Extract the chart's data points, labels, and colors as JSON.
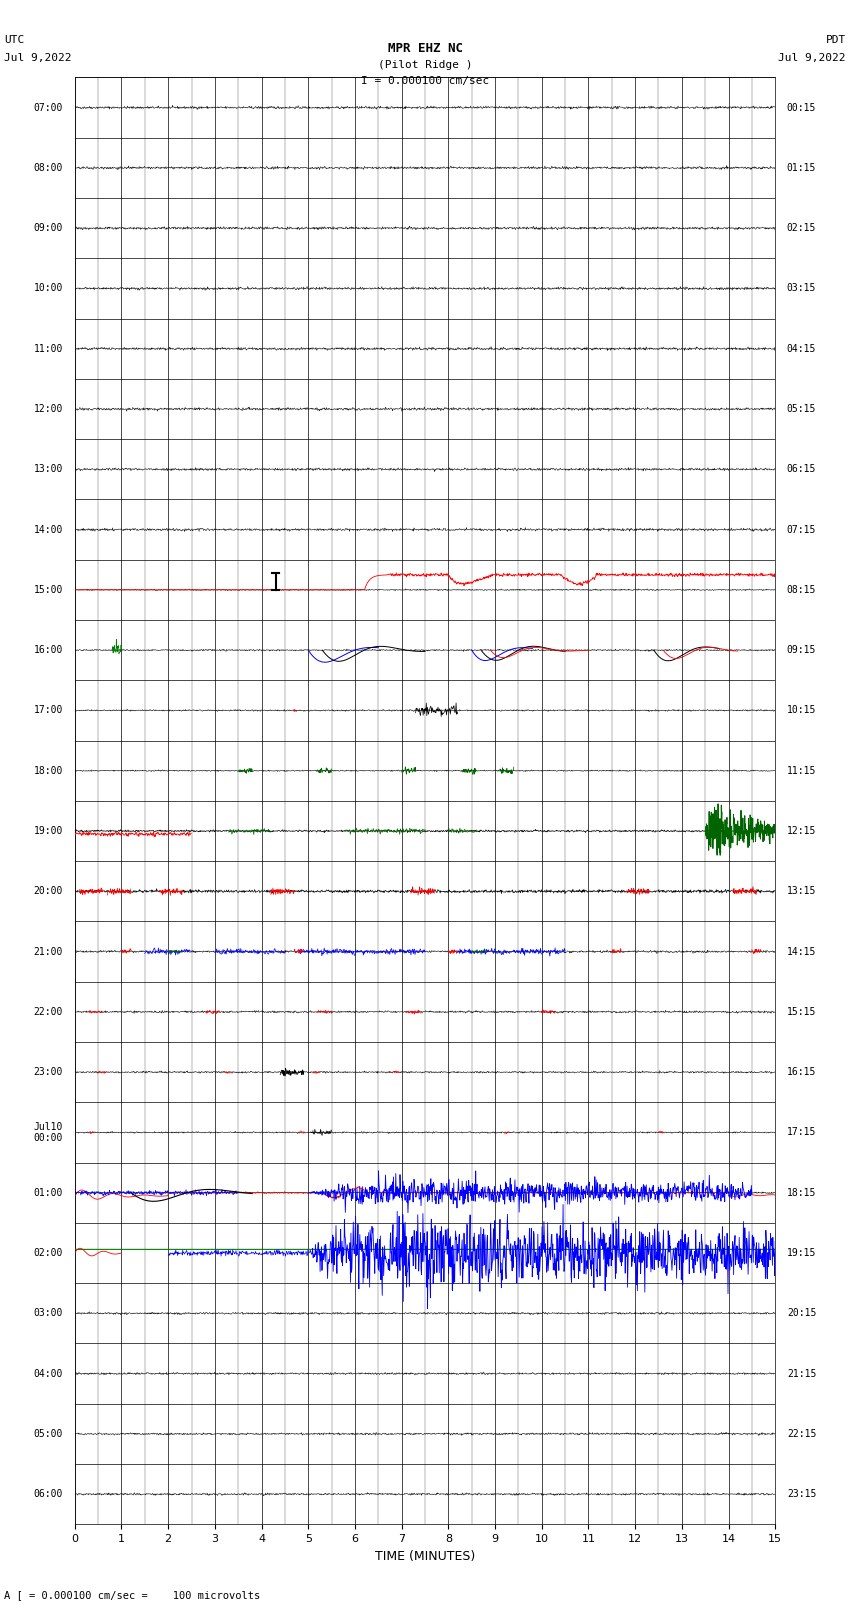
{
  "title_line1": "MPR EHZ NC",
  "title_line2": "(Pilot Ridge )",
  "title_line3": "I = 0.000100 cm/sec",
  "left_header_line1": "UTC",
  "left_header_line2": "Jul 9,2022",
  "right_header_line1": "PDT",
  "right_header_line2": "Jul 9,2022",
  "xlabel": "TIME (MINUTES)",
  "footer": "A [ = 0.000100 cm/sec =    100 microvolts",
  "xlim": [
    0,
    15
  ],
  "n_rows": 24,
  "row_labels_left": [
    "07:00",
    "08:00",
    "09:00",
    "10:00",
    "11:00",
    "12:00",
    "13:00",
    "14:00",
    "15:00",
    "16:00",
    "17:00",
    "18:00",
    "19:00",
    "20:00",
    "21:00",
    "22:00",
    "23:00",
    "Jul10\n00:00",
    "01:00",
    "02:00",
    "03:00",
    "04:00",
    "05:00",
    "06:00"
  ],
  "row_labels_right": [
    "00:15",
    "01:15",
    "02:15",
    "03:15",
    "04:15",
    "05:15",
    "06:15",
    "07:15",
    "08:15",
    "09:15",
    "10:15",
    "11:15",
    "12:15",
    "13:15",
    "14:15",
    "15:15",
    "16:15",
    "17:15",
    "18:15",
    "19:15",
    "20:15",
    "21:15",
    "22:15",
    "23:15"
  ],
  "label_fontsize": 7.0,
  "title_fontsize": 9
}
